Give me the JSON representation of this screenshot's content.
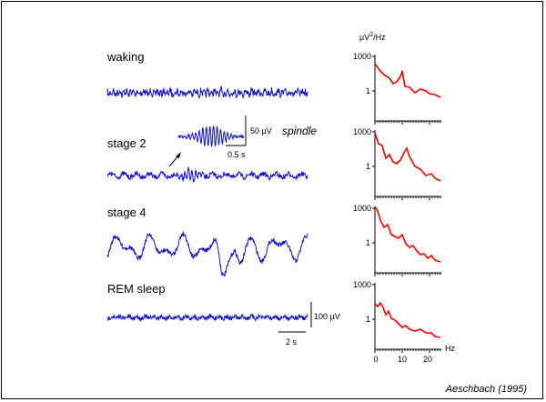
{
  "stages": {
    "waking": "waking",
    "stage2": "stage 2",
    "stage4": "stage 4",
    "rem": "REM sleep"
  },
  "spindle_inset": {
    "label": "spindle",
    "amplitude_scale": "50 µV",
    "time_scale": "0.5 s"
  },
  "eeg_scale": {
    "amplitude": "100 µV",
    "time": "2 s"
  },
  "spectra": {
    "unit_label_prefix": "µV",
    "unit_label_exp": "2",
    "unit_label_suffix": "/Hz",
    "y_tick_top": "1000",
    "y_tick_mid": "1",
    "x_ticks": [
      "0",
      "10",
      "20"
    ],
    "x_unit": "Hz",
    "color": "#ee0000"
  },
  "trace_color": "#1010c8",
  "citation": "Aeschbach (1995)"
}
